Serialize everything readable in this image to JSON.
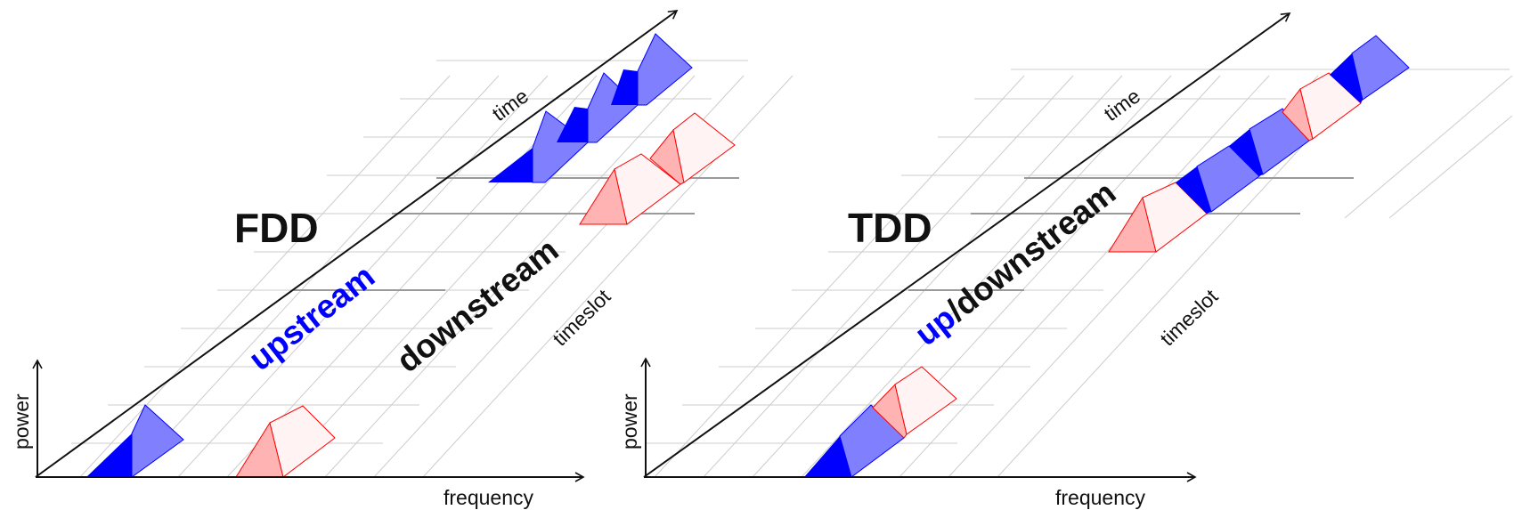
{
  "panels": [
    {
      "id": "fdd",
      "title": "FDD",
      "axis_time": "time",
      "axis_power": "power",
      "axis_frequency": "frequency",
      "axis_timeslot": "timeslot",
      "stream_labels": {
        "upstream": "upstream",
        "downstream": "downstream"
      }
    },
    {
      "id": "tdd",
      "title": "TDD",
      "axis_time": "time",
      "axis_power": "power",
      "axis_frequency": "frequency",
      "axis_timeslot": "timeslot",
      "stream_labels": {
        "up": "up",
        "separator_downstream": "/downstream"
      }
    }
  ],
  "colors": {
    "upstream_blue": "#0000ff",
    "upstream_blue_light": "#8080ff",
    "downstream_red": "#ff0000",
    "downstream_red_light": "#ffb3b3",
    "downstream_red_pale": "#fff3f3",
    "grid": "#cccccc",
    "axis": "#111111"
  }
}
